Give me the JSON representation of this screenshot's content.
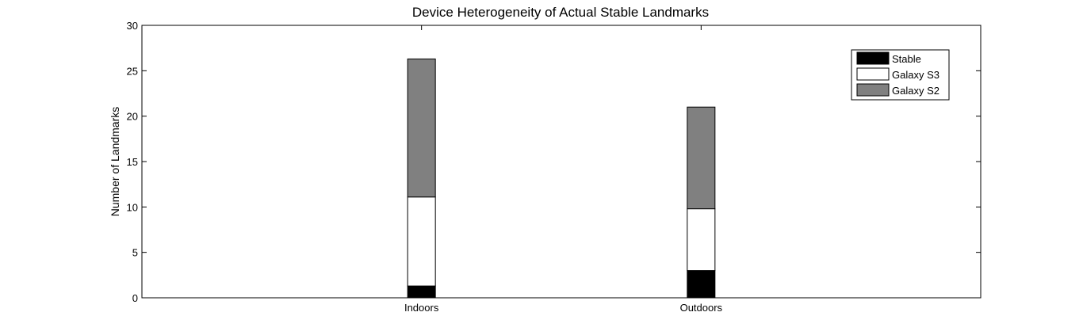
{
  "chart_data": {
    "type": "bar",
    "stacked": true,
    "title": "Device Heterogeneity of Actual Stable Landmarks",
    "xlabel": "",
    "ylabel": "Number of Landmarks",
    "categories": [
      "Indoors",
      "Outdoors"
    ],
    "ylim": [
      0,
      30
    ],
    "yticks": [
      0,
      5,
      10,
      15,
      20,
      25,
      30
    ],
    "grid": false,
    "legend_position": "top-right",
    "series": [
      {
        "name": "Stable",
        "values": [
          1.3,
          3.0
        ],
        "color": "#000000"
      },
      {
        "name": "Galaxy S3",
        "values": [
          9.8,
          6.8
        ],
        "color": "#ffffff"
      },
      {
        "name": "Galaxy S2",
        "values": [
          15.2,
          11.2
        ],
        "color": "#808080"
      }
    ]
  }
}
